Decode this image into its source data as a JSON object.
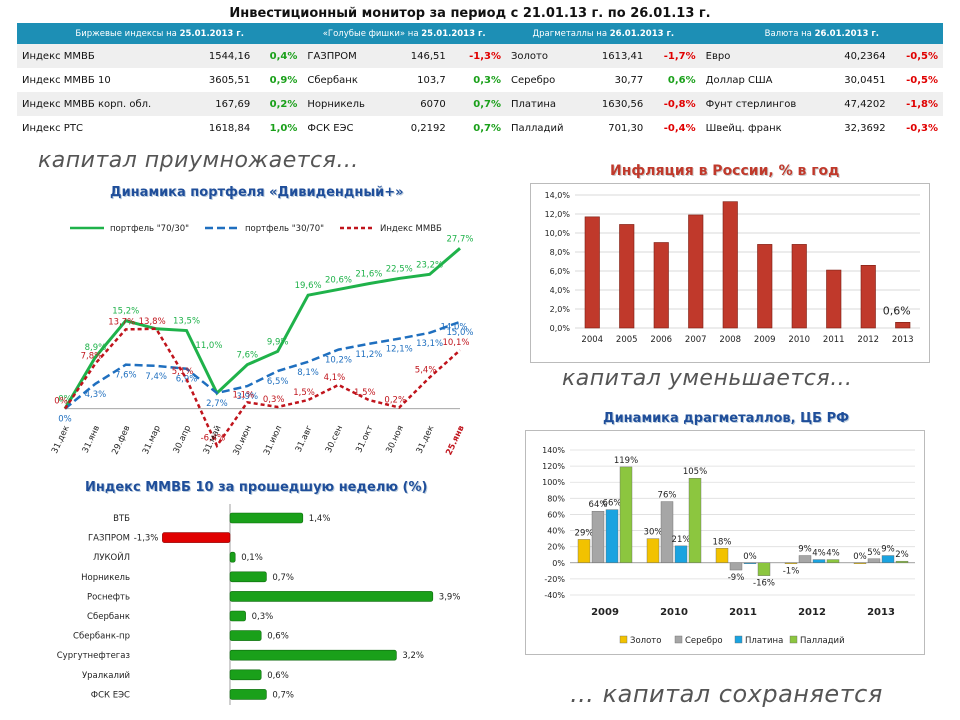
{
  "title": "Инвестиционный монитор за период с 21.01.13 г. по 26.01.13 г.",
  "table": {
    "headers": [
      {
        "label": "Биржевые индексы  на ",
        "date": "25.01.2013 г."
      },
      {
        "label": "«Голубые фишки»  на ",
        "date": "25.01.2013 г."
      },
      {
        "label": "Драгметаллы  на ",
        "date": "26.01.2013 г."
      },
      {
        "label": "Валюта  на ",
        "date": "26.01.2013 г."
      }
    ],
    "rows": [
      [
        [
          "Индекс ММВБ",
          "1544,16",
          "0,4%"
        ],
        [
          "ГАЗПРОМ",
          "146,51",
          "-1,3%"
        ],
        [
          "Золото",
          "1613,41",
          "-1,7%"
        ],
        [
          "Евро",
          "40,2364",
          "-0,5%"
        ]
      ],
      [
        [
          "Индекс ММВБ 10",
          "3605,51",
          "0,9%"
        ],
        [
          "Сбербанк",
          "103,7",
          "0,3%"
        ],
        [
          "Серебро",
          "30,77",
          "0,6%"
        ],
        [
          "Доллар США",
          "30,0451",
          "-0,5%"
        ]
      ],
      [
        [
          "Индекс ММВБ корп. обл.",
          "167,69",
          "0,2%"
        ],
        [
          "Норникель",
          "6070",
          "0,7%"
        ],
        [
          "Платина",
          "1630,56",
          "-0,8%"
        ],
        [
          "Фунт стерлингов",
          "47,4202",
          "-1,8%"
        ]
      ],
      [
        [
          "Индекс РТС",
          "1618,84",
          "1,0%"
        ],
        [
          "ФСК ЕЭС",
          "0,2192",
          "0,7%"
        ],
        [
          "Палладий",
          "701,30",
          "-0,4%"
        ],
        [
          "Швейц. франк",
          "32,3692",
          "-0,3%"
        ]
      ]
    ]
  },
  "captions": {
    "grow": "капитал приумножается…",
    "shrink": "капитал уменьшается…",
    "keep": "… капитал сохраняется"
  },
  "colors": {
    "positive": "#1aa01a",
    "negative": "#e00000",
    "header_bg": "#1d8fb5",
    "portfolio_70_30": "#1fb24a",
    "portfolio_30_70": "#1f6fbf",
    "micex": "#c0141c",
    "inflation_bar": "#c0392b",
    "gold": "#f2c200",
    "silver": "#a6a6a6",
    "platinum": "#1aa3e0",
    "palladium": "#8cc63f"
  },
  "chart_data": [
    {
      "id": "portfolio",
      "type": "line",
      "title": "Динамика портфеля «Дивидендный+»",
      "categories": [
        "31.дек",
        "31.янв",
        "29.фев",
        "31.мар",
        "30.апр",
        "31.май",
        "30.июн",
        "31.июл",
        "31.авг",
        "30.сен",
        "31.окт",
        "30.ноя",
        "31.дек",
        "25.янв"
      ],
      "series": [
        {
          "name": "портфель \"70/30\"",
          "values": [
            0,
            8.9,
            15.2,
            13.8,
            13.5,
            2.7,
            7.6,
            9.9,
            19.6,
            20.6,
            21.6,
            22.5,
            23.2,
            27.7
          ],
          "labels": [
            "0%",
            "8,9%",
            "15,2%",
            "",
            "13,5%",
            "",
            "7,6%",
            "9,9%",
            "19,6%",
            "20,6%",
            "21,6%",
            "22,5%",
            "23,2%",
            "27,7%"
          ]
        },
        {
          "name": "портфель \"30/70\"",
          "values": [
            0,
            4.3,
            7.6,
            7.4,
            6.9,
            2.7,
            3.9,
            6.5,
            8.1,
            10.2,
            11.2,
            12.1,
            13.1,
            15.0
          ],
          "labels": [
            "0%",
            "4,3%",
            "7,6%",
            "7,4%",
            "6,9%",
            "2,7%",
            "3,9%",
            "6,5%",
            "8,1%",
            "10,2%",
            "11,2%",
            "12,1%",
            "13,1%",
            "15,0%"
          ]
        },
        {
          "name": "Индекс ММВБ",
          "values": [
            0,
            7.8,
            13.7,
            13.8,
            5.1,
            -6.4,
            1.1,
            0.3,
            1.5,
            4.1,
            1.5,
            0.2,
            5.4,
            10.1
          ],
          "labels": [
            "0%",
            "7,8%",
            "13,7%",
            "13,8%",
            "5,1%",
            "-6,4%",
            "1,1%",
            "0,3%",
            "1,5%",
            "4,1%",
            "1,5%",
            "0,2%",
            "5,4%",
            "10,1%"
          ]
        }
      ],
      "extra_labels": [
        "11,0%",
        "14,0%"
      ],
      "ylim": [
        -8,
        30
      ]
    },
    {
      "id": "inflation",
      "type": "bar",
      "title": "Инфляция в России, % в год",
      "categories": [
        "2004",
        "2005",
        "2006",
        "2007",
        "2008",
        "2009",
        "2010",
        "2011",
        "2012",
        "2013"
      ],
      "values": [
        11.7,
        10.9,
        9.0,
        11.9,
        13.3,
        8.8,
        8.8,
        6.1,
        6.6,
        0.6
      ],
      "value_labels": [
        "",
        "",
        "",
        "",
        "",
        "",
        "",
        "",
        "",
        "0,6%"
      ],
      "yticks": [
        "0,0%",
        "2,0%",
        "4,0%",
        "6,0%",
        "8,0%",
        "10,0%",
        "12,0%",
        "14,0%"
      ],
      "ylim": [
        0,
        14
      ]
    },
    {
      "id": "micex10",
      "type": "bar",
      "orientation": "horizontal",
      "title": "Индекс ММВБ 10 за прошедшую неделю (%)",
      "categories": [
        "ВТБ",
        "ГАЗПРОМ",
        "ЛУКОЙЛ",
        "Норникель",
        "Роснефть",
        "Сбербанк",
        "Сбербанк-пр",
        "Сургутнефтегаз",
        "Уралкалий",
        "ФСК ЕЭС"
      ],
      "values": [
        1.4,
        -1.3,
        0.1,
        0.7,
        3.9,
        0.3,
        0.6,
        3.2,
        0.6,
        0.7
      ],
      "value_labels": [
        "1,4%",
        "-1,3%",
        "0,1%",
        "0,7%",
        "3,9%",
        "0,3%",
        "0,6%",
        "3,2%",
        "0,6%",
        "0,7%"
      ]
    },
    {
      "id": "metals",
      "type": "bar",
      "title": "Динамика драгметаллов, ЦБ РФ",
      "categories": [
        "2009",
        "2010",
        "2011",
        "2012",
        "2013"
      ],
      "series": [
        {
          "name": "Золото",
          "values": [
            29,
            30,
            18,
            -1,
            0
          ],
          "labels": [
            "29%",
            "30%",
            "18%",
            "-1%",
            "0%"
          ]
        },
        {
          "name": "Серебро",
          "values": [
            64,
            76,
            -9,
            9,
            5
          ],
          "labels": [
            "64%",
            "76%",
            "-9%",
            "9%",
            "5%"
          ]
        },
        {
          "name": "Платина",
          "values": [
            66,
            21,
            0,
            4,
            9
          ],
          "labels": [
            "66%",
            "21%",
            "0%",
            "4%",
            "9%"
          ]
        },
        {
          "name": "Палладий",
          "values": [
            119,
            105,
            -16,
            4,
            2
          ],
          "labels": [
            "119%",
            "105%",
            "-16%",
            "4%",
            "2%"
          ]
        }
      ],
      "yticks": [
        "-40%",
        "-20%",
        "0%",
        "20%",
        "40%",
        "60%",
        "80%",
        "100%",
        "120%",
        "140%"
      ],
      "ylim": [
        -40,
        140
      ],
      "legend_position": "bottom"
    }
  ]
}
